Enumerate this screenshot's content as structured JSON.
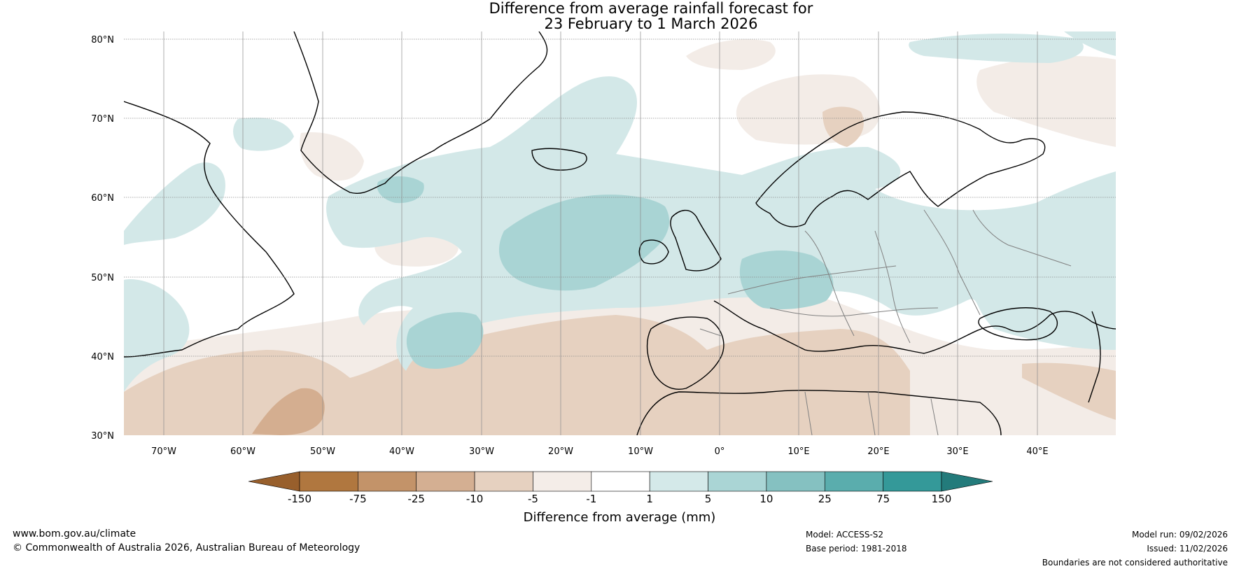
{
  "title": {
    "line1": "Difference from average rainfall forecast for",
    "line2": "23 February to 1 March 2026"
  },
  "map": {
    "lat_labels": [
      "30°N",
      "40°N",
      "50°N",
      "60°N",
      "70°N",
      "80°N"
    ],
    "lon_labels": [
      "70°W",
      "60°W",
      "50°W",
      "40°W",
      "30°W",
      "20°W",
      "10°W",
      "0°",
      "10°E",
      "20°E",
      "30°E",
      "40°E"
    ],
    "colors": {
      "strong_wet": "#a9d4d4",
      "wet": "#d3e8e8",
      "dry": "#f3ece7",
      "dry_med": "#e6d1c0",
      "dry_strong": "#d4ae90",
      "coast": "#000000",
      "border": "#808080"
    }
  },
  "colorbar": {
    "ticks": [
      "-150",
      "-75",
      "-25",
      "-10",
      "-5",
      "-1",
      "1",
      "5",
      "10",
      "25",
      "75",
      "150"
    ],
    "colors": [
      "#985f2c",
      "#b0773f",
      "#c39369",
      "#d4af92",
      "#e6d1c0",
      "#f4ede8",
      "#ffffff",
      "#d4e9e9",
      "#aad5d5",
      "#85c1c1",
      "#5aadad",
      "#349999",
      "#237b7b"
    ],
    "label": "Difference from average (mm)"
  },
  "footer": {
    "website": "www.bom.gov.au/climate",
    "copyright": "© Commonwealth of Australia 2026, Australian Bureau of Meteorology",
    "model": "Model: ACCESS-S2",
    "base_period": "Base period: 1981-2018",
    "model_run": "Model run: 09/02/2026",
    "issued": "Issued: 11/02/2026",
    "disclaimer": "Boundaries are not considered authoritative"
  }
}
